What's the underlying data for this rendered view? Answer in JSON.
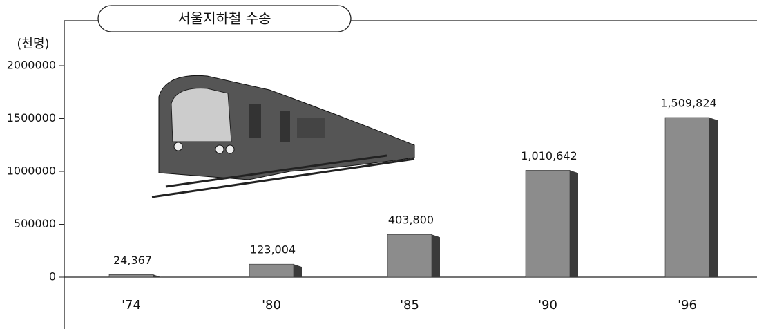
{
  "chart_data": {
    "type": "bar",
    "title": "서울지하철 수송",
    "y_label": "(천명)",
    "categories": [
      "'74",
      "'80",
      "'85",
      "'90",
      "'96"
    ],
    "values": [
      24367,
      123004,
      403800,
      1010642,
      1509824
    ],
    "value_labels": [
      "24,367",
      "123,004",
      "403,800",
      "1,010,642",
      "1,509,824"
    ],
    "color": "#8c8c8c",
    "ylim": [
      0,
      2000000
    ],
    "yticks": [
      0,
      500000,
      1000000,
      1500000,
      2000000
    ]
  }
}
